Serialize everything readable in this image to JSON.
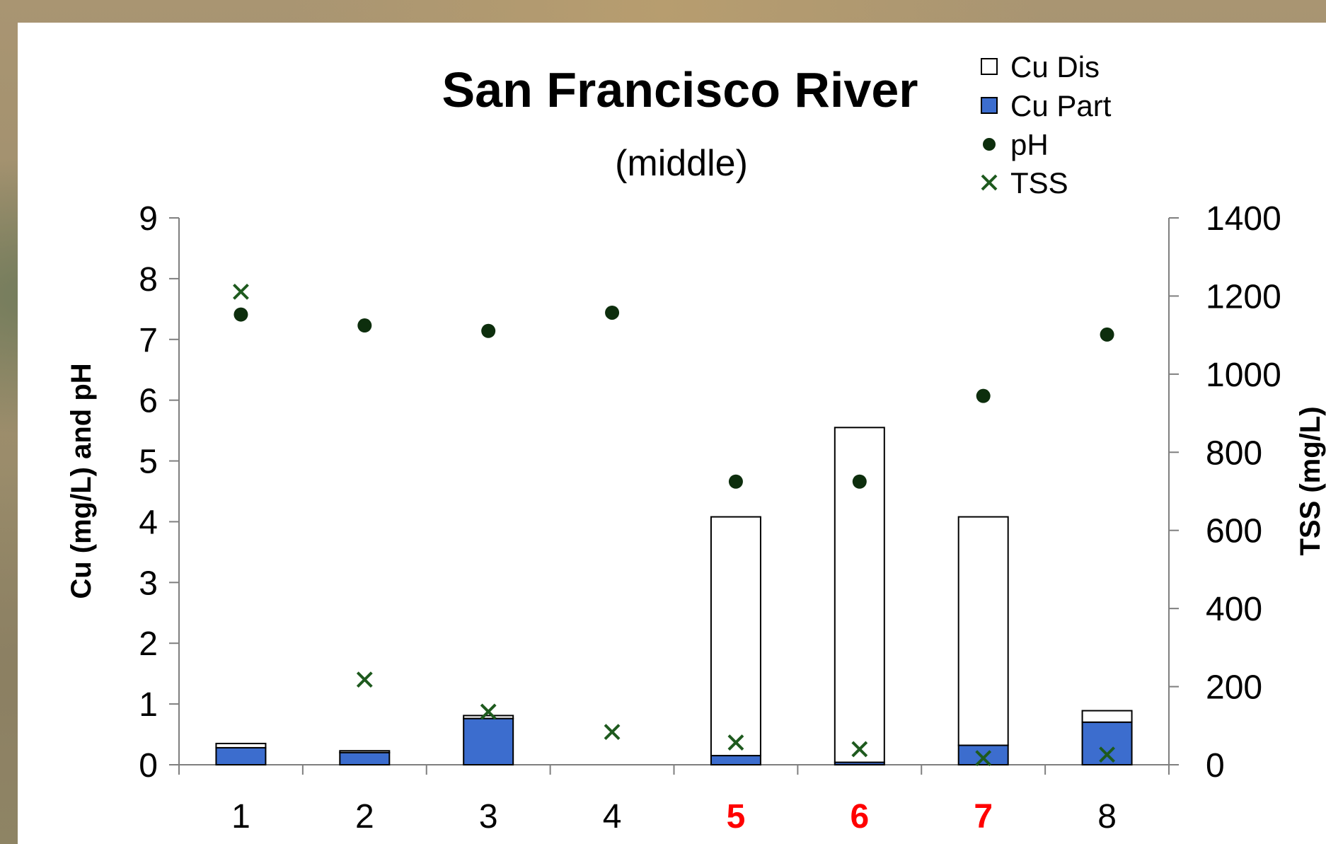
{
  "chart_data": {
    "type": "bar",
    "title": "San Francisco River",
    "subtitle": "(middle)",
    "ylabel": "Cu (mg/L) and pH",
    "y2label": "TSS (mg/L)",
    "ylim": [
      0,
      9
    ],
    "y2lim": [
      0,
      1400
    ],
    "yticks": [
      "0",
      "1",
      "2",
      "3",
      "4",
      "5",
      "6",
      "7",
      "8",
      "9"
    ],
    "y2ticks": [
      "0",
      "200",
      "400",
      "600",
      "800",
      "1000",
      "1200",
      "1400"
    ],
    "categories": [
      "1",
      "2",
      "3",
      "4",
      "5",
      "6",
      "7",
      "8"
    ],
    "highlighted_categories": [
      "5",
      "6",
      "7"
    ],
    "highlight_color": "#ff0000",
    "stacked": true,
    "series": [
      {
        "name": "Cu Part",
        "type": "bar",
        "axis": "left",
        "color": "#3c6dce",
        "values": [
          0.28,
          0.2,
          0.76,
          0,
          0.15,
          0.04,
          0.32,
          0.7
        ]
      },
      {
        "name": "Cu Dis",
        "type": "bar",
        "axis": "left",
        "color": "#ffffff",
        "values": [
          0.07,
          0.03,
          0.05,
          0,
          3.93,
          5.51,
          3.76,
          0.19
        ]
      },
      {
        "name": "pH",
        "type": "scatter",
        "marker": "circle",
        "axis": "left",
        "color": "#0d2e0d",
        "values": [
          7.41,
          7.23,
          7.14,
          7.44,
          4.66,
          4.66,
          6.07,
          7.08
        ]
      },
      {
        "name": "TSS",
        "type": "scatter",
        "marker": "x",
        "axis": "right",
        "color": "#1e5a1e",
        "values": [
          1211,
          218,
          136,
          84,
          57,
          40,
          17,
          26
        ]
      }
    ],
    "legend": {
      "position": "top-right",
      "items": [
        {
          "label": "Cu Dis",
          "marker": "square-open"
        },
        {
          "label": "Cu Part",
          "marker": "square-filled"
        },
        {
          "label": "pH",
          "marker": "circle"
        },
        {
          "label": "TSS",
          "marker": "x"
        }
      ]
    },
    "grid": false
  }
}
